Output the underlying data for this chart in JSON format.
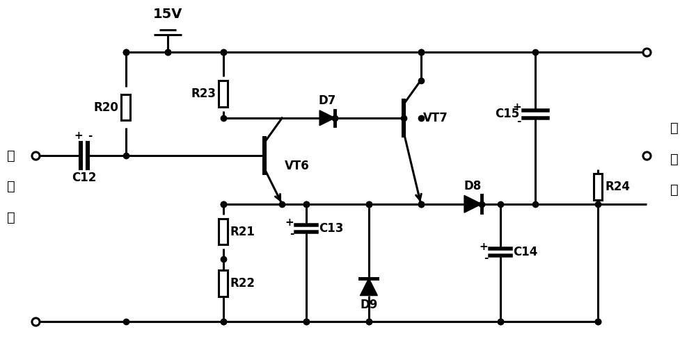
{
  "background_color": "#ffffff",
  "line_color": "#000000",
  "line_width": 2.2,
  "font_size": 12,
  "fig_width": 10.0,
  "fig_height": 5.04,
  "dpi": 100,
  "supply_label": "15V",
  "input_label_chars": [
    "输",
    "入",
    "端"
  ],
  "output_label_chars": [
    "输",
    "出",
    "端"
  ]
}
